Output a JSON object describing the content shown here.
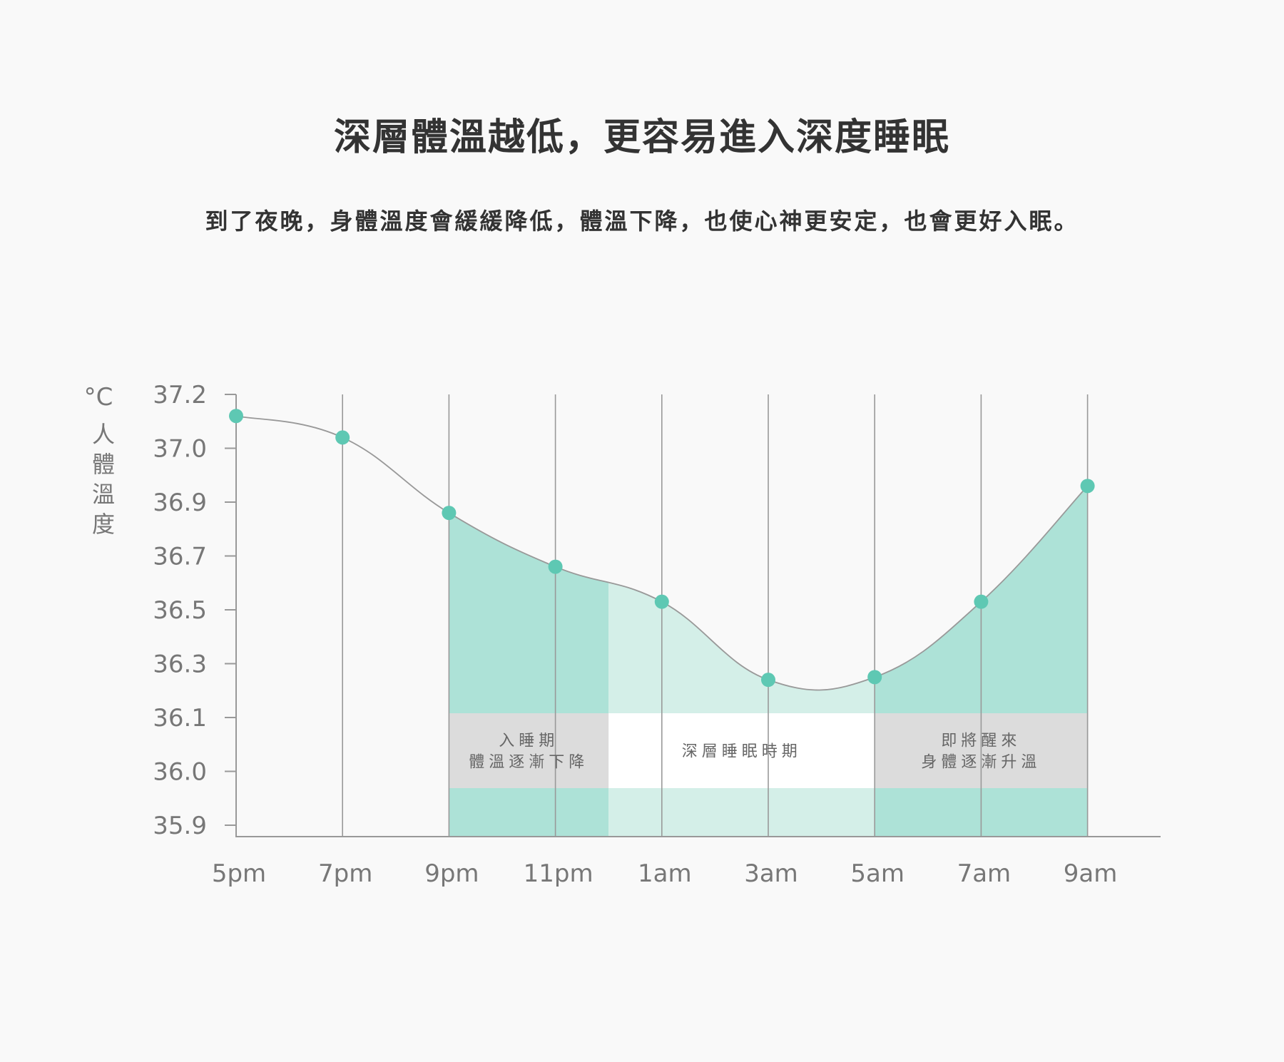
{
  "title": "深層體溫越低，更容易進入深度睡眠",
  "subtitle": "到了夜晚，身體溫度會緩緩降低，體溫下降，也使心神更安定，也會更好入眠。",
  "colors": {
    "background": "#f9f9f9",
    "point": "#5ec8b3",
    "fill_dark": "#ade2d7",
    "fill_light": "#d4efe8",
    "line": "#999999",
    "grid": "#999999",
    "phase_gray": "#dcdcdc",
    "phase_white": "#ffffff"
  },
  "chart_data": {
    "type": "area",
    "unit": "°C",
    "ylabel": "人體溫度",
    "y_ticks": [
      "37.2",
      "37.0",
      "36.9",
      "36.7",
      "36.5",
      "36.3",
      "36.1",
      "36.0",
      "35.9"
    ],
    "categories": [
      "5pm",
      "7pm",
      "9pm",
      "11pm",
      "1am",
      "3am",
      "5am",
      "7am",
      "9am"
    ],
    "values": [
      37.12,
      37.04,
      36.86,
      36.66,
      36.53,
      36.24,
      36.25,
      36.53,
      36.93
    ],
    "grid": "vertical",
    "phases": [
      {
        "lines": [
          "入睡期",
          "體溫逐漸下降"
        ],
        "from": "9pm",
        "to": "12am",
        "style": "gray"
      },
      {
        "lines": [
          "深層睡眠時期"
        ],
        "from": "12am",
        "to": "5am",
        "style": "white"
      },
      {
        "lines": [
          "即將醒來",
          "身體逐漸升溫"
        ],
        "from": "5am",
        "to": "9am",
        "style": "gray"
      }
    ]
  }
}
